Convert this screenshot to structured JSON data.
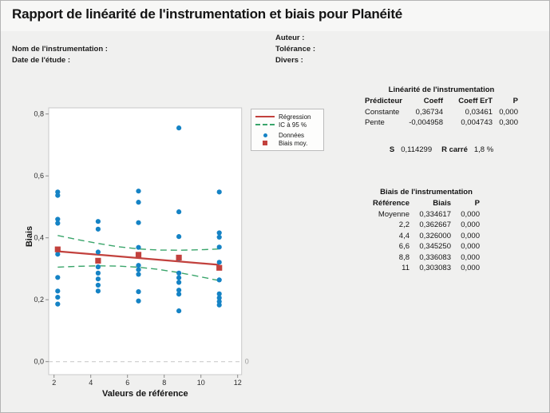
{
  "title": "Rapport de linéarité de l'instrumentation et biais pour Planéité",
  "header": {
    "fields": [
      {
        "id": "auteur",
        "label": "Auteur :"
      },
      {
        "id": "nom",
        "label": "Nom de l'instrumentation :"
      },
      {
        "id": "tolerance",
        "label": "Tolérance :"
      },
      {
        "id": "date",
        "label": "Date de l'étude :"
      },
      {
        "id": "divers",
        "label": "Divers :"
      }
    ]
  },
  "chart_data": {
    "type": "scatter",
    "xlabel": "Valeurs de référence",
    "ylabel": "Biais",
    "xlim": [
      1.7,
      12.2
    ],
    "ylim": [
      -0.04,
      0.82
    ],
    "xticks": [
      2,
      4,
      6,
      8,
      10,
      12
    ],
    "yticks": [
      {
        "value": 0.0,
        "label": "0,0"
      },
      {
        "value": 0.2,
        "label": "0,2"
      },
      {
        "value": 0.4,
        "label": "0,4"
      },
      {
        "value": 0.6,
        "label": "0,6"
      },
      {
        "value": 0.8,
        "label": "0,8"
      }
    ],
    "grid": false,
    "zero_reference_line": {
      "y": 0,
      "right_label": "0"
    },
    "series": [
      {
        "name": "Données",
        "type": "scatter",
        "color": "#1583c5",
        "groups": [
          {
            "x": 2.2,
            "values": [
              0.548,
              0.537,
              0.46,
              0.447,
              0.347,
              0.272,
              0.228,
              0.208,
              0.186
            ]
          },
          {
            "x": 4.4,
            "values": [
              0.453,
              0.428,
              0.354,
              0.306,
              0.286,
              0.267,
              0.247,
              0.228
            ]
          },
          {
            "x": 6.6,
            "values": [
              0.551,
              0.515,
              0.449,
              0.369,
              0.311,
              0.297,
              0.282,
              0.226,
              0.196
            ]
          },
          {
            "x": 8.8,
            "values": [
              0.755,
              0.484,
              0.404,
              0.333,
              0.286,
              0.271,
              0.256,
              0.231,
              0.218,
              0.164
            ]
          },
          {
            "x": 11,
            "values": [
              0.548,
              0.416,
              0.402,
              0.37,
              0.321,
              0.264,
              0.219,
              0.206,
              0.194,
              0.183
            ]
          }
        ]
      },
      {
        "name": "Biais moy.",
        "type": "square",
        "color": "#c2413d",
        "points": [
          [
            2.2,
            0.362667
          ],
          [
            4.4,
            0.326
          ],
          [
            6.6,
            0.34525
          ],
          [
            8.8,
            0.336083
          ],
          [
            11,
            0.303083
          ]
        ]
      },
      {
        "name": "Régression",
        "type": "line",
        "color": "#c2413d",
        "points": [
          [
            2.2,
            0.3564
          ],
          [
            11,
            0.3128
          ]
        ]
      },
      {
        "name": "IC à 95 %",
        "type": "dashed-band",
        "color": "#3aa56b",
        "upper": [
          [
            2.2,
            0.4076
          ],
          [
            3.3,
            0.394
          ],
          [
            4.4,
            0.3816
          ],
          [
            5.5,
            0.3714
          ],
          [
            6.6,
            0.3642
          ],
          [
            7.7,
            0.3605
          ],
          [
            8.8,
            0.3599
          ],
          [
            9.9,
            0.3613
          ],
          [
            11,
            0.3639
          ]
        ],
        "lower": [
          [
            2.2,
            0.3053
          ],
          [
            3.3,
            0.3079
          ],
          [
            4.4,
            0.3094
          ],
          [
            5.5,
            0.3087
          ],
          [
            6.6,
            0.3051
          ],
          [
            7.7,
            0.2978
          ],
          [
            8.8,
            0.2877
          ],
          [
            9.9,
            0.2752
          ],
          [
            11,
            0.2617
          ]
        ]
      }
    ],
    "legend": {
      "position": "top-right",
      "items": [
        {
          "label": "Régression",
          "marker": "line",
          "color": "#c2413d"
        },
        {
          "label": "IC à 95 %",
          "marker": "dashed-line",
          "color": "#3aa56b"
        },
        {
          "label": "Données",
          "marker": "dot",
          "color": "#1583c5"
        },
        {
          "label": "Biais moy.",
          "marker": "square",
          "color": "#c2413d"
        }
      ]
    }
  },
  "tables": {
    "linearity": {
      "title": "Linéarité de l'instrumentation",
      "columns": [
        "Prédicteur",
        "Coeff",
        "Coeff ErT",
        "P"
      ],
      "rows": [
        [
          "Constante",
          "0,36734",
          "0,03461",
          "0,000"
        ],
        [
          "Pente",
          "-0,004958",
          "0,004743",
          "0,300"
        ]
      ],
      "summary": {
        "s_label": "S",
        "s_value": "0,114299",
        "r_label": "R carré",
        "r_value": "1,8 %"
      }
    },
    "bias": {
      "title": "Biais de l'instrumentation",
      "columns": [
        "Référence",
        "Biais",
        "P"
      ],
      "rows": [
        [
          "Moyenne",
          "0,334617",
          "0,000"
        ],
        [
          "2,2",
          "0,362667",
          "0,000"
        ],
        [
          "4,4",
          "0,326000",
          "0,000"
        ],
        [
          "6,6",
          "0,345250",
          "0,000"
        ],
        [
          "8,8",
          "0,336083",
          "0,000"
        ],
        [
          "11",
          "0,303083",
          "0,000"
        ]
      ]
    }
  },
  "colors": {
    "background": "#f0f0ef",
    "title_band": "#f7f7f6",
    "plot_bg": "#ffffff",
    "plot_border": "#c9c9c9",
    "data_blue": "#1583c5",
    "bias_red": "#c2413d",
    "ci_green": "#3aa56b",
    "zero_gray": "#c6c6c6",
    "tick_text": "#2b2b2b",
    "muted_text": "#9c9c9c"
  }
}
